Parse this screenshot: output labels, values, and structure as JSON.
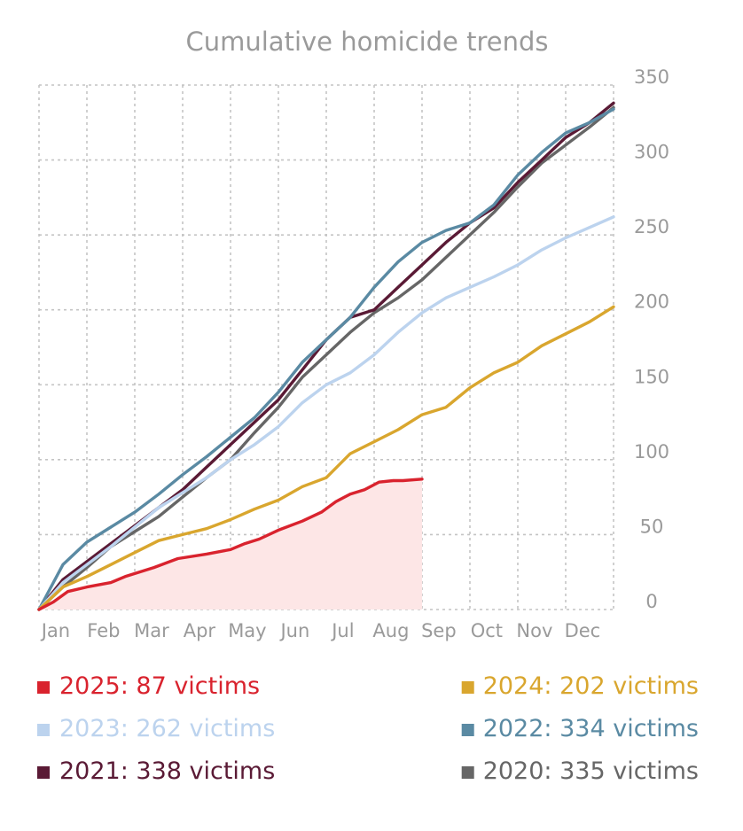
{
  "chart_data": {
    "type": "line",
    "title": "Cumulative homicide trends",
    "xlabel": "",
    "ylabel": "",
    "ylim": [
      0,
      350
    ],
    "yticks": [
      0,
      50,
      100,
      150,
      200,
      250,
      300,
      350
    ],
    "y_axis_side": "right",
    "grid": true,
    "months": [
      "Jan",
      "Feb",
      "Mar",
      "Apr",
      "May",
      "Jun",
      "Jul",
      "Aug",
      "Sep",
      "Oct",
      "Nov",
      "Dec"
    ],
    "x_unit": "month (0 = start of Jan, 12 = end of Dec)",
    "xlim": [
      0,
      12
    ],
    "legend_placement": "bottom",
    "series": [
      {
        "name": "2025",
        "legend": "2025: 87 victims",
        "color": "#d9232e",
        "fill": "#fde6e6",
        "filled": true,
        "x": [
          0,
          0.3,
          0.6,
          1.0,
          1.5,
          1.8,
          2.4,
          2.9,
          3.5,
          4.0,
          4.3,
          4.6,
          5.0,
          5.5,
          5.9,
          6.2,
          6.5,
          6.8,
          7.1,
          7.4,
          7.6,
          8.0
        ],
        "y": [
          0,
          5,
          12,
          15,
          18,
          22,
          28,
          34,
          37,
          40,
          44,
          47,
          53,
          59,
          65,
          72,
          77,
          80,
          85,
          86,
          86,
          87
        ]
      },
      {
        "name": "2024",
        "legend": "2024: 202 victims",
        "color": "#d9a62e",
        "filled": false,
        "x": [
          0,
          0.5,
          1.0,
          1.5,
          2.0,
          2.5,
          3.0,
          3.5,
          4.0,
          4.5,
          5.0,
          5.5,
          6.0,
          6.5,
          7.0,
          7.5,
          8.0,
          8.5,
          9.0,
          9.5,
          10.0,
          10.5,
          11.0,
          11.5,
          12.0
        ],
        "y": [
          0,
          15,
          22,
          30,
          38,
          46,
          50,
          54,
          60,
          67,
          73,
          82,
          88,
          104,
          112,
          120,
          130,
          135,
          148,
          158,
          165,
          176,
          184,
          192,
          202
        ]
      },
      {
        "name": "2023",
        "legend": "2023: 262 victims",
        "color": "#bcd3ee",
        "filled": false,
        "x": [
          0,
          0.5,
          1.0,
          1.5,
          2.0,
          2.5,
          3.0,
          3.5,
          4.0,
          4.5,
          5.0,
          5.5,
          6.0,
          6.5,
          7.0,
          7.5,
          8.0,
          8.5,
          9.0,
          9.5,
          10.0,
          10.5,
          11.0,
          11.5,
          12.0
        ],
        "y": [
          0,
          18,
          30,
          42,
          55,
          68,
          78,
          88,
          100,
          110,
          122,
          138,
          150,
          158,
          170,
          185,
          198,
          208,
          215,
          222,
          230,
          240,
          248,
          255,
          262
        ]
      },
      {
        "name": "2022",
        "legend": "2022: 334 victims",
        "color": "#5a8aa3",
        "filled": false,
        "x": [
          0,
          0.5,
          1.0,
          1.5,
          2.0,
          2.5,
          3.0,
          3.5,
          4.0,
          4.5,
          5.0,
          5.5,
          6.0,
          6.5,
          7.0,
          7.5,
          8.0,
          8.5,
          9.0,
          9.5,
          10.0,
          10.5,
          11.0,
          11.5,
          12.0
        ],
        "y": [
          0,
          30,
          45,
          55,
          65,
          77,
          90,
          102,
          115,
          128,
          145,
          165,
          180,
          195,
          215,
          232,
          245,
          253,
          258,
          270,
          290,
          305,
          318,
          325,
          334
        ]
      },
      {
        "name": "2021",
        "legend": "2021: 338 victims",
        "color": "#5a1a35",
        "filled": false,
        "x": [
          0,
          0.5,
          1.0,
          1.5,
          2.0,
          2.5,
          3.0,
          3.5,
          4.0,
          4.5,
          5.0,
          5.5,
          6.0,
          6.5,
          7.0,
          7.5,
          8.0,
          8.5,
          9.0,
          9.5,
          10.0,
          10.5,
          11.0,
          11.5,
          12.0
        ],
        "y": [
          0,
          20,
          32,
          44,
          56,
          68,
          80,
          95,
          110,
          125,
          140,
          160,
          180,
          195,
          200,
          215,
          230,
          245,
          258,
          268,
          285,
          300,
          315,
          325,
          338
        ]
      },
      {
        "name": "2020",
        "legend": "2020: 335 victims",
        "color": "#666666",
        "filled": false,
        "x": [
          0,
          0.5,
          1.0,
          1.5,
          2.0,
          2.5,
          3.0,
          3.5,
          4.0,
          4.5,
          5.0,
          5.5,
          6.0,
          6.5,
          7.0,
          7.5,
          8.0,
          8.5,
          9.0,
          9.5,
          10.0,
          10.5,
          11.0,
          11.5,
          12.0
        ],
        "y": [
          0,
          15,
          28,
          42,
          52,
          62,
          75,
          88,
          100,
          118,
          135,
          155,
          170,
          185,
          198,
          208,
          220,
          235,
          250,
          265,
          282,
          298,
          310,
          322,
          335
        ]
      }
    ]
  }
}
